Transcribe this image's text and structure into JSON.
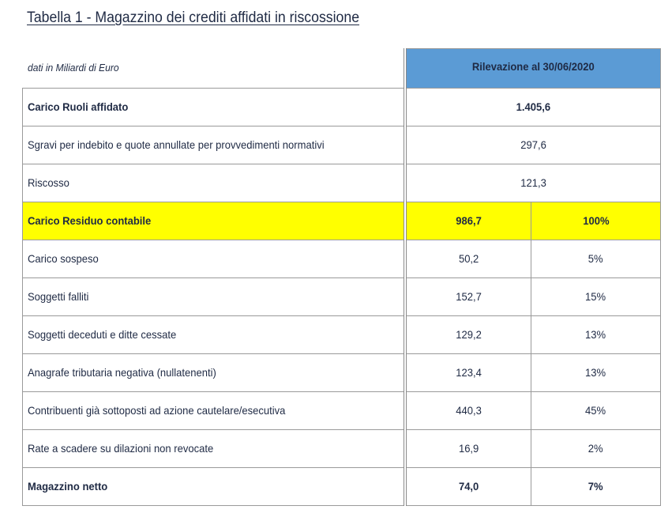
{
  "document": {
    "title": "Tabella 1 - Magazzino dei crediti affidati in riscossione",
    "unit_note": "dati in Miliardi di Euro",
    "column_header": "Rilevazione al 30/06/2020"
  },
  "colors": {
    "header_bg": "#5b9bd5",
    "highlight_bg": "#ffff00",
    "text": "#1f2a44"
  },
  "rows": [
    {
      "label": "Carico Ruoli affidato",
      "value": "1.405,6",
      "percent": "",
      "bold": true,
      "highlight": false,
      "merged": true
    },
    {
      "label": "Sgravi per indebito e quote annullate per provvedimenti normativi",
      "value": "297,6",
      "percent": "",
      "bold": false,
      "highlight": false,
      "merged": true
    },
    {
      "label": "Riscosso",
      "value": "121,3",
      "percent": "",
      "bold": false,
      "highlight": false,
      "merged": true
    },
    {
      "label": "Carico Residuo contabile",
      "value": "986,7",
      "percent": "100%",
      "bold": true,
      "highlight": true,
      "merged": false
    },
    {
      "label": "Carico sospeso",
      "value": "50,2",
      "percent": "5%",
      "bold": false,
      "highlight": false,
      "merged": false
    },
    {
      "label": "Soggetti falliti",
      "value": "152,7",
      "percent": "15%",
      "bold": false,
      "highlight": false,
      "merged": false
    },
    {
      "label": "Soggetti deceduti e ditte cessate",
      "value": "129,2",
      "percent": "13%",
      "bold": false,
      "highlight": false,
      "merged": false
    },
    {
      "label": "Anagrafe tributaria negativa (nullatenenti)",
      "value": "123,4",
      "percent": "13%",
      "bold": false,
      "highlight": false,
      "merged": false
    },
    {
      "label": "Contribuenti già sottoposti ad azione cautelare/esecutiva",
      "value": "440,3",
      "percent": "45%",
      "bold": false,
      "highlight": false,
      "merged": false
    },
    {
      "label": "Rate a scadere su dilazioni non revocate",
      "value": "16,9",
      "percent": "2%",
      "bold": false,
      "highlight": false,
      "merged": false
    },
    {
      "label": "Magazzino netto",
      "value": "74,0",
      "percent": "7%",
      "bold": true,
      "highlight": false,
      "merged": false
    }
  ]
}
